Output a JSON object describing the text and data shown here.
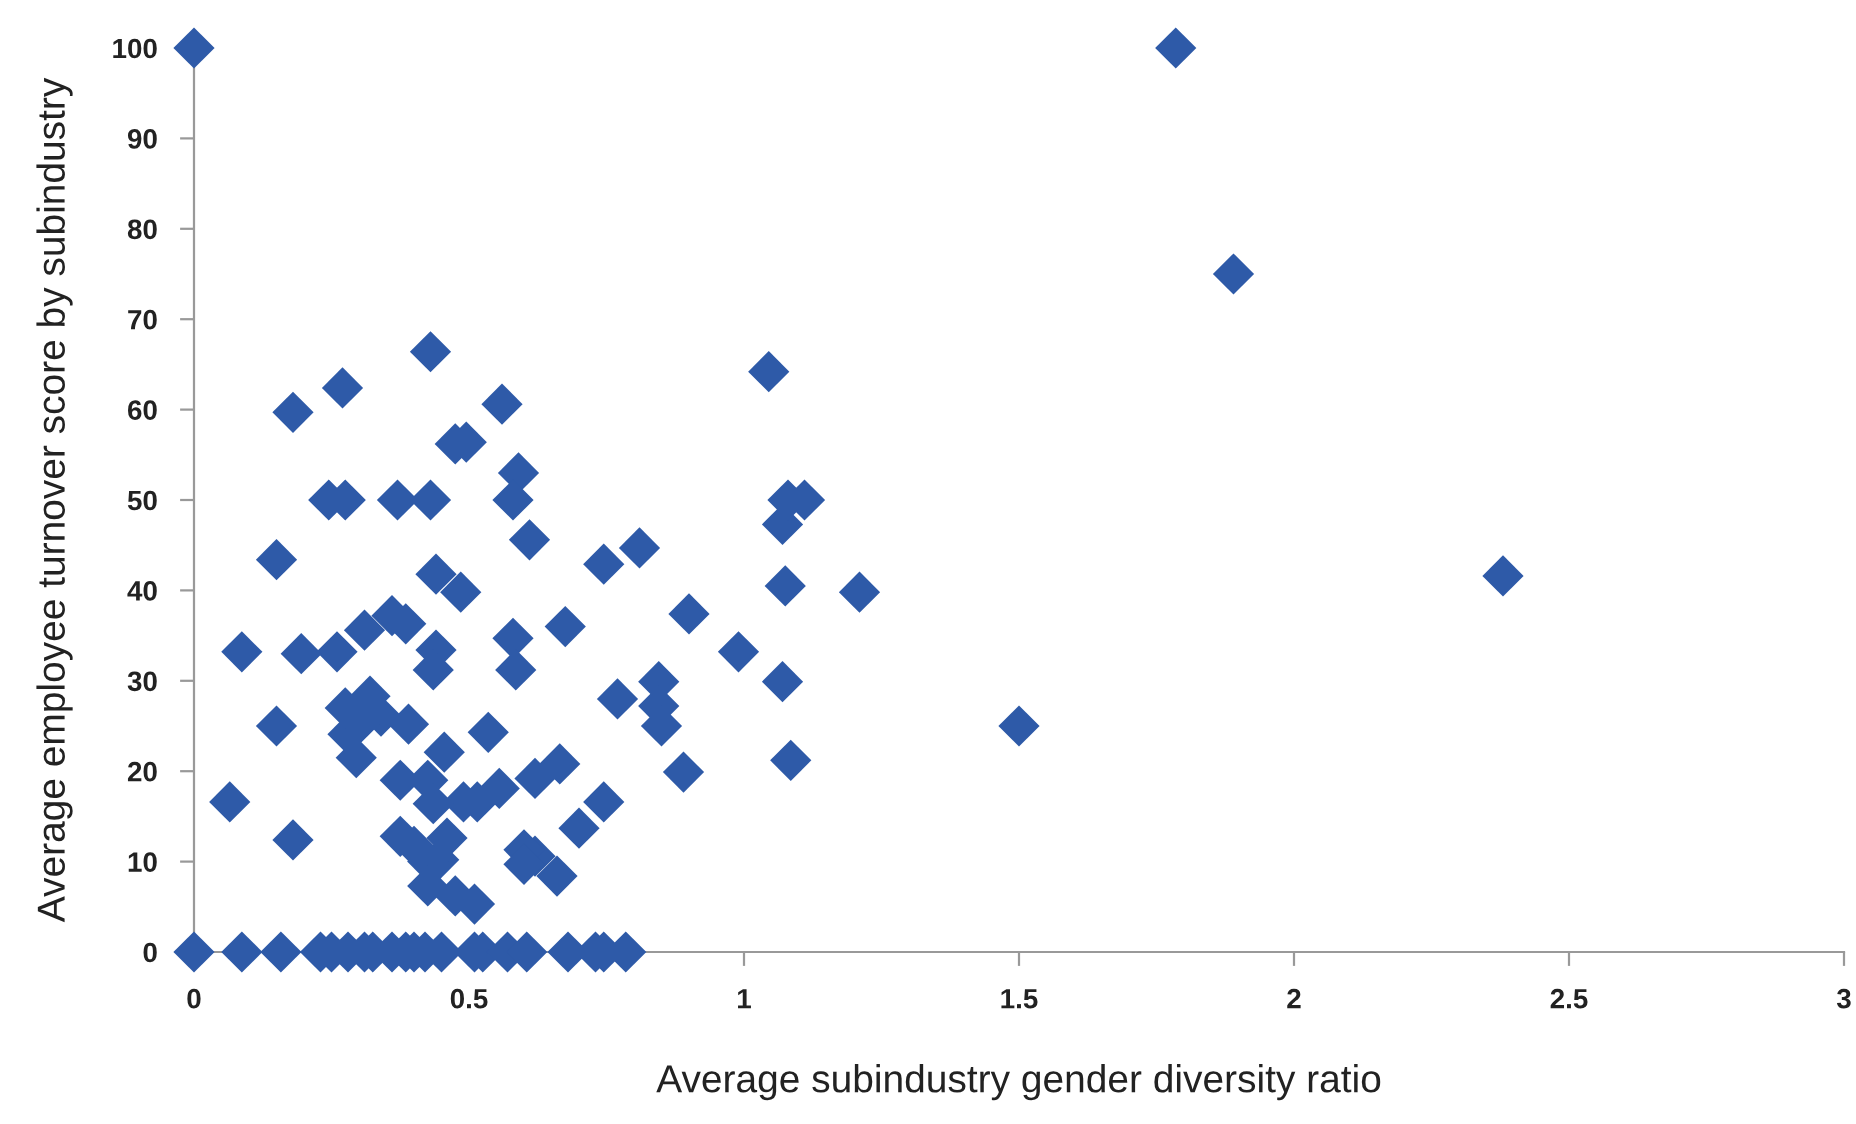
{
  "chart_data": {
    "type": "scatter",
    "xlabel": "Average subindustry gender diversity ratio",
    "ylabel": "Average employee turnover score by subindustry",
    "xlim": [
      0,
      3
    ],
    "ylim": [
      0,
      100
    ],
    "xticks": [
      0,
      0.5,
      1,
      1.5,
      2,
      2.5,
      3
    ],
    "yticks": [
      0,
      10,
      20,
      30,
      40,
      50,
      60,
      70,
      80,
      90,
      100
    ],
    "grid": false,
    "legend": false,
    "marker": "diamond",
    "series": [
      {
        "color": "#2e5aa8",
        "x": [
          0,
          1.785,
          1.89,
          2.38,
          1.5,
          1.045,
          1.07,
          1.08,
          1.11,
          1.075,
          1.21,
          1.07,
          1.085,
          0.99,
          0.9,
          0.89,
          0.81,
          0.845,
          0.845,
          0.85,
          0.77,
          0.745,
          0.745,
          0.7,
          0.675,
          0.665,
          0.66,
          0.62,
          0.62,
          0.61,
          0.59,
          0.58,
          0.58,
          0.585,
          0.56,
          0.6,
          0.6,
          0.555,
          0.535,
          0.515,
          0.49,
          0.51,
          0.495,
          0.475,
          0.485,
          0.475,
          0.46,
          0.445,
          0.455,
          0.43,
          0.43,
          0.44,
          0.44,
          0.435,
          0.425,
          0.435,
          0.425,
          0.425,
          0.4,
          0.385,
          0.39,
          0.375,
          0.375,
          0.37,
          0.36,
          0.34,
          0.32,
          0.3,
          0.295,
          0.28,
          0.275,
          0.31,
          0.275,
          0.26,
          0.245,
          0.27,
          0.18,
          0.195,
          0.15,
          0.15,
          0.18,
          0.087,
          0.065,
          0,
          0.087,
          0.158,
          0.23,
          0.25,
          0.28,
          0.31,
          0.325,
          0.36,
          0.385,
          0.4,
          0.42,
          0.45,
          0.51,
          0.525,
          0.57,
          0.605,
          0.68,
          0.73,
          0.745,
          0.785
        ],
        "values": [
          100,
          100,
          75,
          41.6,
          25,
          64.2,
          47.3,
          50,
          50,
          40.5,
          39.8,
          29.9,
          21.2,
          33.2,
          37.4,
          19.9,
          44.7,
          29.9,
          27.2,
          25,
          28,
          42.9,
          16.6,
          13.7,
          36,
          20.8,
          8.4,
          10.6,
          19.2,
          45.6,
          53,
          50,
          34.7,
          31.2,
          60.6,
          11.3,
          9.7,
          18.1,
          24.3,
          16.6,
          16.6,
          5.3,
          56.4,
          56.2,
          39.8,
          6.2,
          12.6,
          10.2,
          22.1,
          66.4,
          50,
          41.8,
          33.4,
          31.2,
          19,
          16.4,
          10,
          7.3,
          11.7,
          36.3,
          25.2,
          19,
          12.8,
          50,
          37.2,
          26.1,
          28.3,
          25.2,
          21.5,
          24.1,
          27,
          35.6,
          50,
          33.2,
          50,
          62.4,
          59.7,
          33,
          43.4,
          25,
          12.4,
          33.2,
          16.6,
          0,
          0,
          0,
          0,
          0,
          0,
          0,
          0,
          0,
          0,
          0,
          0,
          0,
          0,
          0,
          0,
          0,
          0,
          0,
          0,
          0
        ]
      }
    ]
  }
}
